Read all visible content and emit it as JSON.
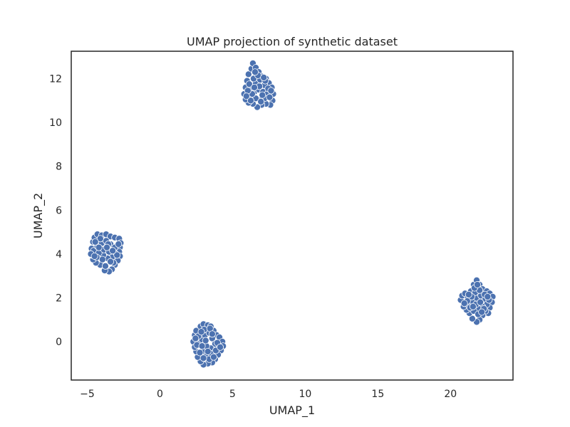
{
  "chart_data": {
    "type": "scatter",
    "title": "UMAP projection of synthetic dataset",
    "xlabel": "UMAP_1",
    "ylabel": "UMAP_2",
    "xlim": [
      -6.1,
      24.3
    ],
    "ylim": [
      -1.75,
      13.25
    ],
    "xticks": [
      -5,
      0,
      5,
      10,
      15,
      20
    ],
    "yticks": [
      0,
      2,
      4,
      6,
      8,
      10,
      12
    ],
    "grid": false,
    "legend": "none",
    "colors": {
      "point_fill": "#4c72b0",
      "point_edge": "#ffffff",
      "axes_edge": "#262626",
      "text": "#262626"
    },
    "series": [
      {
        "points": [
          [
            -4.7,
            4.25
          ],
          [
            -4.6,
            4.55
          ],
          [
            -4.5,
            4.75
          ],
          [
            -4.3,
            4.9
          ],
          [
            -4.0,
            4.85
          ],
          [
            -3.7,
            4.9
          ],
          [
            -3.4,
            4.8
          ],
          [
            -3.1,
            4.75
          ],
          [
            -2.8,
            4.7
          ],
          [
            -2.7,
            4.5
          ],
          [
            -2.75,
            4.3
          ],
          [
            -2.8,
            4.1
          ],
          [
            -2.75,
            3.9
          ],
          [
            -2.9,
            3.7
          ],
          [
            -3.1,
            3.5
          ],
          [
            -3.3,
            3.3
          ],
          [
            -3.5,
            3.2
          ],
          [
            -3.8,
            3.25
          ],
          [
            -4.1,
            3.5
          ],
          [
            -4.4,
            3.6
          ],
          [
            -4.6,
            3.75
          ],
          [
            -4.65,
            3.95
          ],
          [
            -4.55,
            4.15
          ],
          [
            -4.3,
            4.35
          ],
          [
            -4.0,
            4.5
          ],
          [
            -3.7,
            4.6
          ],
          [
            -3.4,
            4.45
          ],
          [
            -3.1,
            4.3
          ],
          [
            -3.05,
            4.0
          ],
          [
            -3.3,
            3.85
          ],
          [
            -3.6,
            3.8
          ],
          [
            -3.9,
            3.95
          ],
          [
            -4.2,
            4.05
          ],
          [
            -3.85,
            4.2
          ],
          [
            -3.5,
            4.1
          ],
          [
            -4.35,
            3.85
          ],
          [
            -3.2,
            3.6
          ],
          [
            -3.75,
            3.45
          ],
          [
            -4.1,
            4.7
          ],
          [
            -3.55,
            4.45
          ],
          [
            -4.45,
            4.55
          ],
          [
            -2.95,
            3.95
          ],
          [
            -4.75,
            4.0
          ],
          [
            -3.95,
            3.75
          ],
          [
            -3.4,
            3.65
          ],
          [
            -4.2,
            4.3
          ],
          [
            -3.25,
            4.15
          ],
          [
            -3.65,
            4.3
          ],
          [
            -2.85,
            4.45
          ],
          [
            -4.5,
            3.9
          ]
        ]
      },
      {
        "points": [
          [
            2.3,
            0.0
          ],
          [
            2.4,
            0.3
          ],
          [
            2.5,
            0.5
          ],
          [
            2.8,
            0.7
          ],
          [
            3.0,
            0.8
          ],
          [
            3.3,
            0.75
          ],
          [
            3.5,
            0.7
          ],
          [
            3.7,
            0.5
          ],
          [
            3.9,
            0.3
          ],
          [
            4.1,
            0.2
          ],
          [
            4.3,
            0.0
          ],
          [
            4.35,
            -0.2
          ],
          [
            4.2,
            -0.4
          ],
          [
            4.0,
            -0.6
          ],
          [
            3.8,
            -0.8
          ],
          [
            3.6,
            -0.95
          ],
          [
            3.3,
            -1.0
          ],
          [
            3.0,
            -1.05
          ],
          [
            2.8,
            -0.9
          ],
          [
            2.6,
            -0.7
          ],
          [
            2.5,
            -0.45
          ],
          [
            2.4,
            -0.25
          ],
          [
            2.7,
            -0.1
          ],
          [
            2.9,
            0.1
          ],
          [
            3.1,
            0.3
          ],
          [
            3.4,
            0.4
          ],
          [
            3.6,
            0.15
          ],
          [
            3.8,
            -0.1
          ],
          [
            3.5,
            -0.3
          ],
          [
            3.2,
            -0.2
          ],
          [
            2.95,
            -0.45
          ],
          [
            3.25,
            -0.6
          ],
          [
            3.55,
            -0.55
          ],
          [
            3.85,
            -0.4
          ],
          [
            2.65,
            0.25
          ],
          [
            3.05,
            0.55
          ],
          [
            3.4,
            -0.8
          ],
          [
            2.75,
            -0.5
          ],
          [
            3.95,
            -0.05
          ],
          [
            3.15,
            0.05
          ],
          [
            2.55,
            -0.15
          ],
          [
            3.7,
            -0.7
          ],
          [
            2.85,
            0.45
          ],
          [
            3.45,
            0.6
          ],
          [
            4.15,
            -0.25
          ],
          [
            3.0,
            -0.75
          ],
          [
            2.45,
            0.15
          ],
          [
            3.6,
            0.35
          ],
          [
            3.3,
            -0.45
          ],
          [
            2.9,
            -0.2
          ]
        ]
      },
      {
        "points": [
          [
            5.8,
            11.3
          ],
          [
            5.9,
            11.6
          ],
          [
            6.0,
            11.9
          ],
          [
            6.1,
            12.2
          ],
          [
            6.3,
            12.45
          ],
          [
            6.4,
            12.7
          ],
          [
            6.6,
            12.5
          ],
          [
            6.8,
            12.3
          ],
          [
            7.0,
            12.1
          ],
          [
            7.3,
            12.0
          ],
          [
            7.5,
            11.8
          ],
          [
            7.7,
            11.6
          ],
          [
            7.8,
            11.3
          ],
          [
            7.75,
            11.0
          ],
          [
            7.6,
            10.8
          ],
          [
            7.3,
            10.85
          ],
          [
            7.0,
            10.8
          ],
          [
            6.7,
            10.7
          ],
          [
            6.4,
            10.85
          ],
          [
            6.1,
            10.9
          ],
          [
            5.9,
            11.05
          ],
          [
            6.2,
            11.2
          ],
          [
            6.5,
            11.4
          ],
          [
            6.8,
            11.5
          ],
          [
            7.1,
            11.4
          ],
          [
            7.4,
            11.3
          ],
          [
            7.2,
            11.1
          ],
          [
            6.9,
            11.0
          ],
          [
            6.6,
            11.1
          ],
          [
            6.3,
            11.55
          ],
          [
            6.6,
            11.8
          ],
          [
            6.9,
            11.95
          ],
          [
            7.2,
            11.7
          ],
          [
            6.45,
            12.0
          ],
          [
            6.75,
            12.15
          ],
          [
            6.15,
            11.75
          ],
          [
            7.05,
            11.25
          ],
          [
            7.45,
            11.55
          ],
          [
            6.35,
            11.3
          ],
          [
            6.85,
            11.65
          ],
          [
            7.55,
            11.15
          ],
          [
            6.05,
            11.45
          ],
          [
            6.55,
            12.3
          ],
          [
            7.25,
            11.9
          ],
          [
            6.25,
            11.0
          ],
          [
            7.65,
            11.45
          ],
          [
            6.95,
            10.95
          ],
          [
            6.5,
            11.6
          ],
          [
            7.15,
            12.05
          ],
          [
            5.95,
            11.2
          ]
        ]
      },
      {
        "points": [
          [
            20.7,
            1.9
          ],
          [
            20.8,
            2.1
          ],
          [
            21.0,
            2.2
          ],
          [
            21.2,
            2.0
          ],
          [
            21.4,
            2.3
          ],
          [
            21.6,
            2.6
          ],
          [
            21.8,
            2.8
          ],
          [
            22.0,
            2.6
          ],
          [
            22.2,
            2.4
          ],
          [
            22.5,
            2.3
          ],
          [
            22.7,
            2.2
          ],
          [
            22.9,
            2.05
          ],
          [
            22.85,
            1.8
          ],
          [
            22.7,
            1.55
          ],
          [
            22.6,
            1.3
          ],
          [
            22.4,
            1.4
          ],
          [
            22.2,
            1.2
          ],
          [
            22.0,
            1.0
          ],
          [
            21.8,
            0.9
          ],
          [
            21.5,
            1.05
          ],
          [
            21.3,
            1.3
          ],
          [
            21.1,
            1.45
          ],
          [
            20.9,
            1.6
          ],
          [
            21.2,
            1.7
          ],
          [
            21.5,
            1.85
          ],
          [
            21.8,
            2.0
          ],
          [
            22.1,
            2.1
          ],
          [
            22.4,
            1.95
          ],
          [
            22.5,
            1.7
          ],
          [
            22.2,
            1.6
          ],
          [
            21.9,
            1.5
          ],
          [
            21.6,
            1.4
          ],
          [
            21.35,
            1.55
          ],
          [
            21.7,
            2.25
          ],
          [
            22.0,
            2.35
          ],
          [
            22.35,
            2.15
          ],
          [
            21.45,
            2.05
          ],
          [
            21.15,
            1.85
          ],
          [
            22.65,
            1.9
          ],
          [
            21.75,
            1.7
          ],
          [
            22.05,
            1.8
          ],
          [
            21.55,
            1.6
          ],
          [
            22.3,
            1.5
          ],
          [
            21.9,
            1.25
          ],
          [
            21.25,
            2.15
          ],
          [
            22.55,
            2.05
          ],
          [
            21.65,
            2.45
          ],
          [
            22.15,
            1.35
          ],
          [
            20.95,
            1.75
          ],
          [
            21.85,
            2.6
          ]
        ]
      }
    ]
  }
}
